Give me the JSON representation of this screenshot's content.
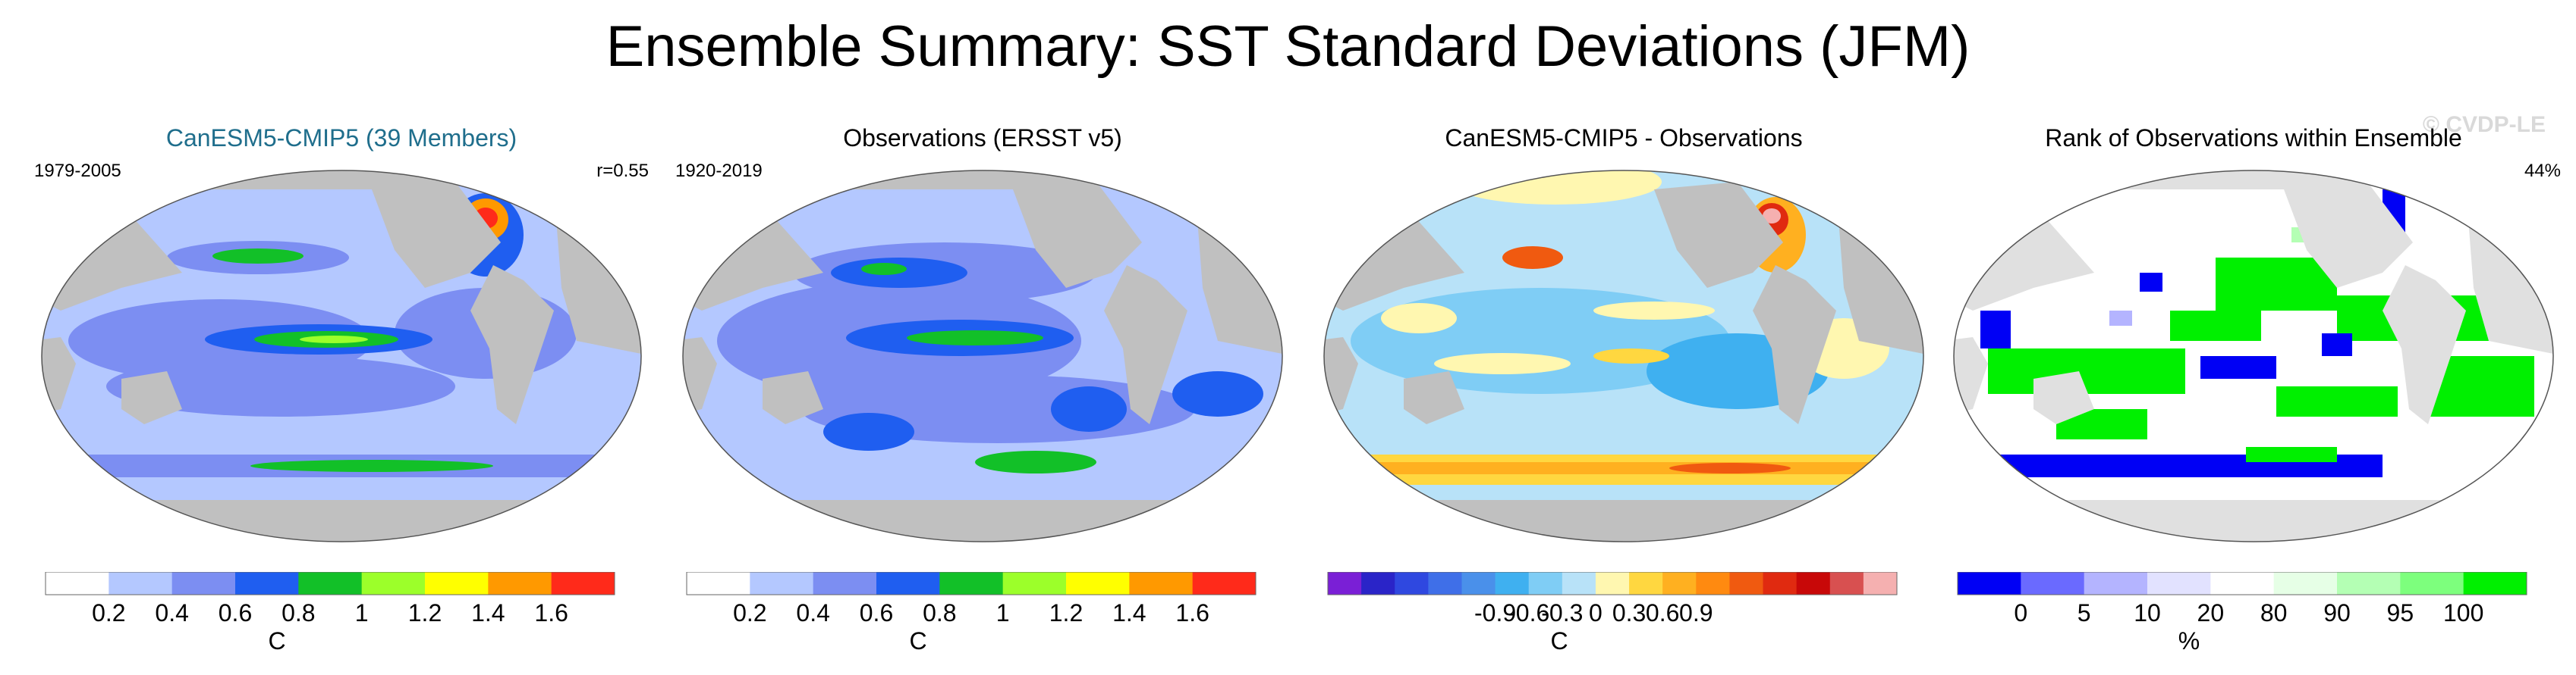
{
  "title": "Ensemble Summary: SST Standard Deviations (JFM)",
  "watermark": "© CVDP-LE",
  "panels": [
    {
      "title": "CanESM5-CMIP5 (39 Members)",
      "left_note": "1979-2005",
      "right_note": "r=0.55",
      "colorbar": {
        "colors": [
          "#ffffff",
          "#b4c8ff",
          "#7c8ef2",
          "#1f5ef0",
          "#12c028",
          "#9cff2a",
          "#ffff00",
          "#ff9900",
          "#ff2a1a"
        ],
        "tick_labels": [
          "0.2",
          "0.4",
          "0.6",
          "0.8",
          "1",
          "1.2",
          "1.4",
          "1.6"
        ],
        "unit": "C"
      }
    },
    {
      "title": "Observations (ERSST v5)",
      "left_note": "1920-2019",
      "right_note": "",
      "colorbar": {
        "colors": [
          "#ffffff",
          "#b4c8ff",
          "#7c8ef2",
          "#1f5ef0",
          "#12c028",
          "#9cff2a",
          "#ffff00",
          "#ff9900",
          "#ff2a1a"
        ],
        "tick_labels": [
          "0.2",
          "0.4",
          "0.6",
          "0.8",
          "1",
          "1.2",
          "1.4",
          "1.6"
        ],
        "unit": "C"
      }
    },
    {
      "title": "CanESM5-CMIP5 - Observations",
      "left_note": "",
      "right_note": "",
      "colorbar": {
        "colors": [
          "#7a1fd6",
          "#2a24c8",
          "#2f48e0",
          "#3f6fe8",
          "#4a90ea",
          "#3fb0f0",
          "#7fcdf5",
          "#b8e2f8",
          "#fff7b0",
          "#ffd740",
          "#ffb020",
          "#ff8a10",
          "#f05a10",
          "#e02a10",
          "#c80808",
          "#d85050",
          "#f5b0b0"
        ],
        "tick_labels": [
          "-0.9",
          "-0.6",
          "-0.3",
          "0",
          "0.3",
          "0.6",
          "0.9"
        ],
        "unit": "C"
      }
    },
    {
      "title": "Rank of Observations within Ensemble",
      "left_note": "",
      "right_note": "44%",
      "colorbar": {
        "colors": [
          "#0000f5",
          "#6a6aff",
          "#b4b4ff",
          "#e2e2ff",
          "#ffffff",
          "#e6ffe6",
          "#b4ffb4",
          "#7dff7d",
          "#00f000"
        ],
        "tick_labels": [
          "0",
          "5",
          "10",
          "20",
          "80",
          "90",
          "95",
          "100"
        ],
        "unit": "%"
      }
    }
  ],
  "chart_data": [
    {
      "type": "heatmap",
      "title": "CanESM5-CMIP5 (39 Members)",
      "period": "1979-2005",
      "pattern_correlation": 0.55,
      "variable": "SST standard deviation (JFM)",
      "unit": "C",
      "levels": [
        0.2,
        0.4,
        0.6,
        0.8,
        1,
        1.2,
        1.4,
        1.6
      ],
      "notable_regions": {
        "equatorial_pacific": 1.2,
        "north_atlantic_gulf_stream": 1.6,
        "kuroshio": 1.0,
        "southern_ocean_band": 1.0,
        "typical_open_ocean": 0.4
      }
    },
    {
      "type": "heatmap",
      "title": "Observations (ERSST v5)",
      "period": "1920-2019",
      "variable": "SST standard deviation (JFM)",
      "unit": "C",
      "levels": [
        0.2,
        0.4,
        0.6,
        0.8,
        1,
        1.2,
        1.4,
        1.6
      ],
      "notable_regions": {
        "equatorial_pacific": 1.0,
        "kuroshio": 0.8,
        "southern_ocean": 0.8,
        "typical_open_ocean": 0.5
      }
    },
    {
      "type": "heatmap",
      "title": "CanESM5-CMIP5 - Observations",
      "variable": "SST standard deviation difference",
      "unit": "C",
      "levels": [
        -0.9,
        -0.6,
        -0.3,
        0,
        0.3,
        0.6,
        0.9
      ],
      "notable_regions": {
        "north_atlantic": 0.9,
        "kuroshio": 0.6,
        "southern_ocean": 0.6,
        "tropical_pacific": -0.3,
        "typical_open_ocean": -0.2
      }
    },
    {
      "type": "heatmap",
      "title": "Rank of Observations within Ensemble",
      "variable": "rank of observations",
      "unit": "%",
      "levels": [
        0,
        5,
        10,
        20,
        80,
        90,
        95,
        100
      ],
      "summary_percent": 44
    }
  ]
}
